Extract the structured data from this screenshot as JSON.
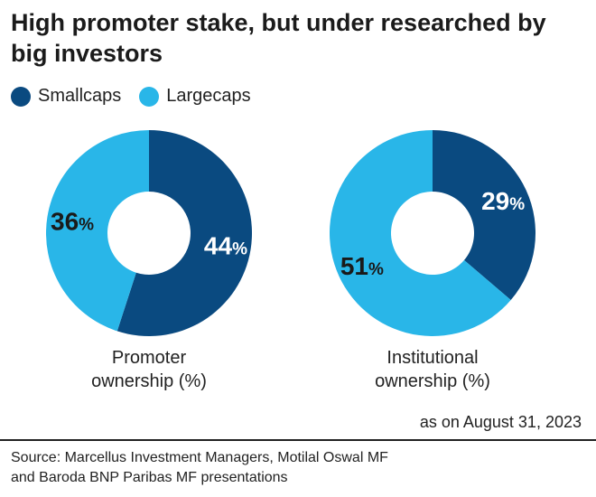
{
  "title": "High promoter stake, but under researched by big investors",
  "legend": [
    {
      "name": "Smallcaps",
      "color": "#0a4a80"
    },
    {
      "name": "Largecaps",
      "color": "#29b6e8"
    }
  ],
  "chart_data": [
    {
      "type": "pie",
      "title": "Promoter ownership (%)",
      "slices": [
        {
          "name": "Smallcaps",
          "value": 44,
          "label": "44",
          "color": "#0a4a80"
        },
        {
          "name": "Largecaps",
          "value": 36,
          "label": "36",
          "color": "#29b6e8"
        }
      ]
    },
    {
      "type": "pie",
      "title": "Institutional ownership (%)",
      "slices": [
        {
          "name": "Smallcaps",
          "value": 29,
          "label": "29",
          "color": "#0a4a80"
        },
        {
          "name": "Largecaps",
          "value": 51,
          "label": "51",
          "color": "#29b6e8"
        }
      ]
    }
  ],
  "captions": {
    "promoter_line1": "Promoter",
    "promoter_line2": "ownership (%)",
    "institutional_line1": "Institutional",
    "institutional_line2": "ownership (%)"
  },
  "as_of": "as on August 31, 2023",
  "source_line1": "Source: Marcellus Investment Managers, Motilal Oswal MF",
  "source_line2": "and Baroda BNP Paribas MF presentations"
}
